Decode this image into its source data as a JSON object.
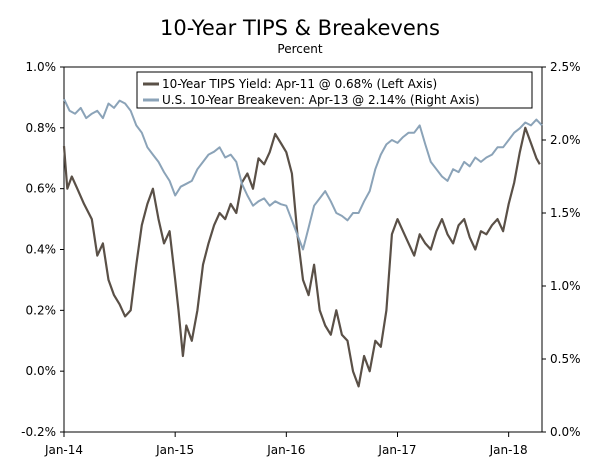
{
  "chart_data": {
    "type": "line",
    "title": "10-Year TIPS & Breakevens",
    "subtitle": "Percent",
    "x_ticks": [
      "Jan-14",
      "Jan-15",
      "Jan-16",
      "Jan-17",
      "Jan-18"
    ],
    "x_domain": [
      2014.0,
      2018.3
    ],
    "y_left": {
      "ticks": [
        "1.0%",
        "0.8%",
        "0.6%",
        "0.4%",
        "0.2%",
        "0.0%",
        "-0.2%"
      ],
      "range": [
        -0.2,
        1.0
      ]
    },
    "y_right": {
      "ticks": [
        "2.5%",
        "2.0%",
        "1.5%",
        "1.0%",
        "0.5%",
        "0.0%"
      ],
      "range": [
        0.0,
        2.5
      ]
    },
    "legend_position": "top-right",
    "series": [
      {
        "name": "10-Year TIPS Yield: Apr-11 @ 0.68% (Left Axis)",
        "axis": "left",
        "color": "#5a5047",
        "x": [
          2014.0,
          2014.03,
          2014.07,
          2014.12,
          2014.18,
          2014.25,
          2014.3,
          2014.35,
          2014.4,
          2014.45,
          2014.5,
          2014.55,
          2014.6,
          2014.65,
          2014.7,
          2014.75,
          2014.8,
          2014.85,
          2014.9,
          2014.95,
          2015.0,
          2015.03,
          2015.07,
          2015.1,
          2015.15,
          2015.2,
          2015.25,
          2015.3,
          2015.35,
          2015.4,
          2015.45,
          2015.5,
          2015.55,
          2015.6,
          2015.65,
          2015.7,
          2015.75,
          2015.8,
          2015.85,
          2015.9,
          2015.95,
          2016.0,
          2016.05,
          2016.1,
          2016.15,
          2016.2,
          2016.25,
          2016.3,
          2016.35,
          2016.4,
          2016.45,
          2016.5,
          2016.55,
          2016.6,
          2016.65,
          2016.7,
          2016.75,
          2016.8,
          2016.85,
          2016.9,
          2016.95,
          2017.0,
          2017.05,
          2017.1,
          2017.15,
          2017.2,
          2017.25,
          2017.3,
          2017.35,
          2017.4,
          2017.45,
          2017.5,
          2017.55,
          2017.6,
          2017.65,
          2017.7,
          2017.75,
          2017.8,
          2017.85,
          2017.9,
          2017.95,
          2018.0,
          2018.05,
          2018.1,
          2018.15,
          2018.2,
          2018.25,
          2018.28
        ],
        "values": [
          0.74,
          0.6,
          0.64,
          0.6,
          0.55,
          0.5,
          0.38,
          0.42,
          0.3,
          0.25,
          0.22,
          0.18,
          0.2,
          0.35,
          0.48,
          0.55,
          0.6,
          0.5,
          0.42,
          0.46,
          0.3,
          0.2,
          0.05,
          0.15,
          0.1,
          0.2,
          0.35,
          0.42,
          0.48,
          0.52,
          0.5,
          0.55,
          0.52,
          0.62,
          0.65,
          0.6,
          0.7,
          0.68,
          0.72,
          0.78,
          0.75,
          0.72,
          0.65,
          0.45,
          0.3,
          0.25,
          0.35,
          0.2,
          0.15,
          0.12,
          0.2,
          0.12,
          0.1,
          0.0,
          -0.05,
          0.05,
          0.0,
          0.1,
          0.08,
          0.2,
          0.45,
          0.5,
          0.46,
          0.42,
          0.38,
          0.45,
          0.42,
          0.4,
          0.46,
          0.5,
          0.45,
          0.42,
          0.48,
          0.5,
          0.44,
          0.4,
          0.46,
          0.45,
          0.48,
          0.5,
          0.46,
          0.55,
          0.62,
          0.72,
          0.8,
          0.75,
          0.7,
          0.68
        ]
      },
      {
        "name": "U.S. 10-Year Breakeven: Apr-13 @ 2.14% (Right Axis)",
        "axis": "right",
        "color": "#8ba3b8",
        "x": [
          2014.0,
          2014.05,
          2014.1,
          2014.15,
          2014.2,
          2014.25,
          2014.3,
          2014.35,
          2014.4,
          2014.45,
          2014.5,
          2014.55,
          2014.6,
          2014.65,
          2014.7,
          2014.75,
          2014.8,
          2014.85,
          2014.9,
          2014.95,
          2015.0,
          2015.05,
          2015.1,
          2015.15,
          2015.2,
          2015.25,
          2015.3,
          2015.35,
          2015.4,
          2015.45,
          2015.5,
          2015.55,
          2015.6,
          2015.65,
          2015.7,
          2015.75,
          2015.8,
          2015.85,
          2015.9,
          2015.95,
          2016.0,
          2016.05,
          2016.1,
          2016.15,
          2016.2,
          2016.25,
          2016.3,
          2016.35,
          2016.4,
          2016.45,
          2016.5,
          2016.55,
          2016.6,
          2016.65,
          2016.7,
          2016.75,
          2016.8,
          2016.85,
          2016.9,
          2016.95,
          2017.0,
          2017.05,
          2017.1,
          2017.15,
          2017.2,
          2017.25,
          2017.3,
          2017.35,
          2017.4,
          2017.45,
          2017.5,
          2017.55,
          2017.6,
          2017.65,
          2017.7,
          2017.75,
          2017.8,
          2017.85,
          2017.9,
          2017.95,
          2018.0,
          2018.05,
          2018.1,
          2018.15,
          2018.2,
          2018.25,
          2018.3
        ],
        "values": [
          2.28,
          2.2,
          2.18,
          2.22,
          2.15,
          2.18,
          2.2,
          2.15,
          2.25,
          2.22,
          2.27,
          2.25,
          2.2,
          2.1,
          2.05,
          1.95,
          1.9,
          1.85,
          1.78,
          1.72,
          1.62,
          1.68,
          1.7,
          1.72,
          1.8,
          1.85,
          1.9,
          1.92,
          1.95,
          1.88,
          1.9,
          1.85,
          1.7,
          1.62,
          1.55,
          1.58,
          1.6,
          1.55,
          1.58,
          1.56,
          1.55,
          1.45,
          1.35,
          1.25,
          1.4,
          1.55,
          1.6,
          1.65,
          1.58,
          1.5,
          1.48,
          1.45,
          1.5,
          1.5,
          1.58,
          1.65,
          1.8,
          1.9,
          1.97,
          2.0,
          1.98,
          2.02,
          2.05,
          2.05,
          2.1,
          1.97,
          1.85,
          1.8,
          1.75,
          1.72,
          1.8,
          1.78,
          1.85,
          1.82,
          1.88,
          1.85,
          1.88,
          1.9,
          1.95,
          1.95,
          2.0,
          2.05,
          2.08,
          2.12,
          2.1,
          2.14,
          2.1
        ]
      }
    ]
  }
}
